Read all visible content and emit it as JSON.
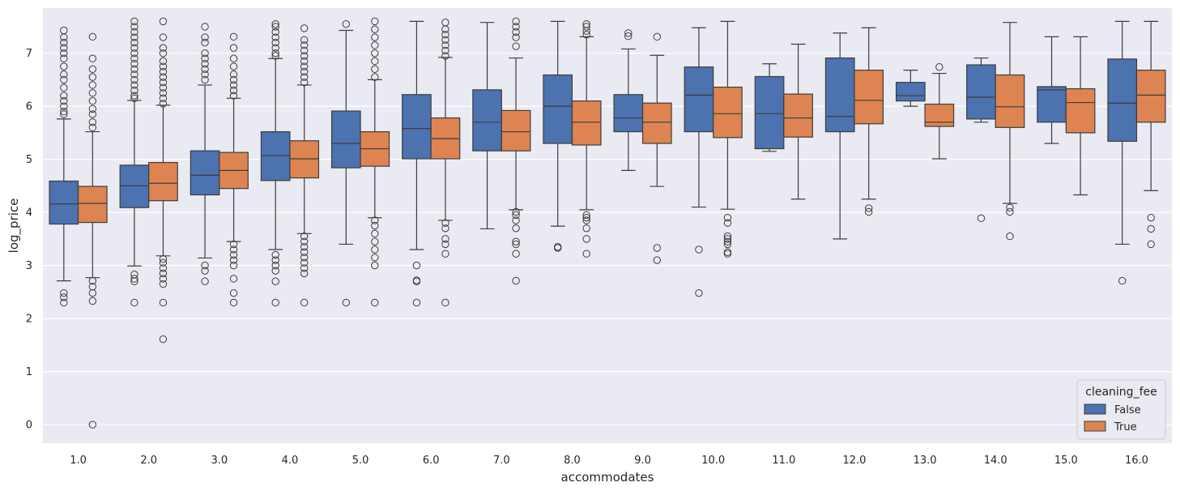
{
  "chart_data": {
    "type": "box",
    "title": "",
    "xlabel": "accommodates",
    "ylabel": "log_price",
    "ylim": [
      -0.35,
      7.85
    ],
    "yticks": [
      0,
      1,
      2,
      3,
      4,
      5,
      6,
      7
    ],
    "categories": [
      "1.0",
      "2.0",
      "3.0",
      "4.0",
      "5.0",
      "6.0",
      "7.0",
      "8.0",
      "9.0",
      "10.0",
      "11.0",
      "12.0",
      "13.0",
      "14.0",
      "15.0",
      "16.0"
    ],
    "grid": true,
    "legend": {
      "title": "cleaning_fee",
      "position": "lower-right"
    },
    "series": [
      {
        "name": "False",
        "color": "#4c72b0",
        "boxes": [
          {
            "whislo": 2.71,
            "q1": 3.78,
            "med": 4.16,
            "q3": 4.59,
            "whishi": 5.76,
            "fliers": [
              2.3,
              2.4,
              2.48,
              5.85,
              5.9,
              6.0,
              6.1,
              6.2,
              6.35,
              6.5,
              6.6,
              6.75,
              6.9,
              7.0,
              7.1,
              7.2,
              7.3,
              7.43
            ]
          },
          {
            "whislo": 2.99,
            "q1": 4.09,
            "med": 4.5,
            "q3": 4.89,
            "whishi": 6.11,
            "fliers": [
              2.3,
              2.7,
              2.75,
              2.83,
              6.15,
              6.2,
              6.3,
              6.4,
              6.5,
              6.6,
              6.7,
              6.8,
              6.9,
              7.0,
              7.1,
              7.2,
              7.3,
              7.4,
              7.5,
              7.6
            ]
          },
          {
            "whislo": 3.14,
            "q1": 4.33,
            "med": 4.7,
            "q3": 5.16,
            "whishi": 6.4,
            "fliers": [
              2.7,
              2.9,
              3.0,
              6.5,
              6.6,
              6.7,
              6.8,
              6.9,
              7.0,
              7.2,
              7.3,
              7.5
            ]
          },
          {
            "whislo": 3.3,
            "q1": 4.6,
            "med": 5.07,
            "q3": 5.52,
            "whishi": 6.9,
            "fliers": [
              2.3,
              2.7,
              2.9,
              3.0,
              3.1,
              3.2,
              6.95,
              7.0,
              7.1,
              7.2,
              7.3,
              7.4,
              7.5,
              7.55
            ]
          },
          {
            "whislo": 3.4,
            "q1": 4.84,
            "med": 5.3,
            "q3": 5.91,
            "whishi": 7.43,
            "fliers": [
              2.3,
              7.55
            ]
          },
          {
            "whislo": 3.3,
            "q1": 5.01,
            "med": 5.58,
            "q3": 6.22,
            "whishi": 7.6,
            "fliers": [
              2.3,
              2.7,
              2.72,
              3.0
            ]
          },
          {
            "whislo": 3.69,
            "q1": 5.16,
            "med": 5.7,
            "q3": 6.31,
            "whishi": 7.58,
            "fliers": []
          },
          {
            "whislo": 3.74,
            "q1": 5.3,
            "med": 6.0,
            "q3": 6.59,
            "whishi": 7.6,
            "fliers": [
              3.33,
              3.35
            ]
          },
          {
            "whislo": 4.79,
            "q1": 5.52,
            "med": 5.78,
            "q3": 6.22,
            "whishi": 7.08,
            "fliers": [
              7.32,
              7.38
            ]
          },
          {
            "whislo": 4.1,
            "q1": 5.52,
            "med": 6.21,
            "q3": 6.74,
            "whishi": 7.48,
            "fliers": [
              2.48,
              3.3
            ]
          },
          {
            "whislo": 5.15,
            "q1": 5.2,
            "med": 5.86,
            "q3": 6.56,
            "whishi": 6.8,
            "fliers": []
          },
          {
            "whislo": 3.5,
            "q1": 5.52,
            "med": 5.81,
            "q3": 6.91,
            "whishi": 7.38,
            "fliers": []
          },
          {
            "whislo": 6.0,
            "q1": 6.1,
            "med": 6.2,
            "q3": 6.45,
            "whishi": 6.68,
            "fliers": []
          },
          {
            "whislo": 5.7,
            "q1": 5.76,
            "med": 6.17,
            "q3": 6.78,
            "whishi": 6.91,
            "fliers": [
              3.89
            ]
          },
          {
            "whislo": 5.3,
            "q1": 5.7,
            "med": 6.31,
            "q3": 6.37,
            "whishi": 7.31,
            "fliers": []
          },
          {
            "whislo": 3.4,
            "q1": 5.34,
            "med": 6.06,
            "q3": 6.89,
            "whishi": 7.6,
            "fliers": [
              2.71
            ]
          }
        ]
      },
      {
        "name": "True",
        "color": "#dd8452",
        "boxes": [
          {
            "whislo": 2.77,
            "q1": 3.81,
            "med": 4.17,
            "q3": 4.49,
            "whishi": 5.52,
            "fliers": [
              0.0,
              2.33,
              2.48,
              2.6,
              2.71,
              5.6,
              5.7,
              5.85,
              5.95,
              6.1,
              6.25,
              6.4,
              6.55,
              6.7,
              6.9,
              7.31
            ]
          },
          {
            "whislo": 3.18,
            "q1": 4.22,
            "med": 4.55,
            "q3": 4.94,
            "whishi": 6.02,
            "fliers": [
              1.61,
              2.3,
              2.65,
              2.75,
              2.85,
              2.95,
              3.05,
              3.12,
              6.05,
              6.15,
              6.25,
              6.35,
              6.45,
              6.55,
              6.65,
              6.75,
              6.85,
              7.0,
              7.1,
              7.3,
              7.6
            ]
          },
          {
            "whislo": 3.45,
            "q1": 4.45,
            "med": 4.79,
            "q3": 5.13,
            "whishi": 6.15,
            "fliers": [
              2.3,
              2.48,
              2.75,
              3.0,
              3.1,
              3.2,
              3.3,
              3.4,
              6.2,
              6.3,
              6.4,
              6.5,
              6.6,
              6.75,
              6.9,
              7.1,
              7.31
            ]
          },
          {
            "whislo": 3.6,
            "q1": 4.65,
            "med": 5.01,
            "q3": 5.35,
            "whishi": 6.4,
            "fliers": [
              2.3,
              2.85,
              2.95,
              3.05,
              3.15,
              3.25,
              3.35,
              3.45,
              3.55,
              6.45,
              6.55,
              6.65,
              6.75,
              6.85,
              6.95,
              7.05,
              7.15,
              7.25,
              7.47
            ]
          },
          {
            "whislo": 3.9,
            "q1": 4.87,
            "med": 5.2,
            "q3": 5.52,
            "whishi": 6.5,
            "fliers": [
              2.3,
              3.0,
              3.15,
              3.3,
              3.45,
              3.6,
              3.75,
              3.85,
              6.55,
              6.7,
              6.85,
              7.0,
              7.15,
              7.3,
              7.45,
              7.6
            ]
          },
          {
            "whislo": 3.85,
            "q1": 5.01,
            "med": 5.39,
            "q3": 5.78,
            "whishi": 6.92,
            "fliers": [
              2.3,
              3.22,
              3.4,
              3.5,
              3.7,
              3.8,
              6.95,
              7.05,
              7.15,
              7.25,
              7.35,
              7.45,
              7.58
            ]
          },
          {
            "whislo": 4.05,
            "q1": 5.16,
            "med": 5.52,
            "q3": 5.92,
            "whishi": 6.91,
            "fliers": [
              2.71,
              3.22,
              3.4,
              3.45,
              3.7,
              3.85,
              3.95,
              4.01,
              7.13,
              7.3,
              7.4,
              7.5,
              7.6
            ]
          },
          {
            "whislo": 4.05,
            "q1": 5.27,
            "med": 5.7,
            "q3": 6.1,
            "whishi": 7.31,
            "fliers": [
              3.22,
              3.5,
              3.7,
              3.85,
              3.9,
              3.95,
              7.35,
              7.42,
              7.5,
              7.55
            ]
          },
          {
            "whislo": 4.49,
            "q1": 5.3,
            "med": 5.7,
            "q3": 6.06,
            "whishi": 6.96,
            "fliers": [
              3.1,
              3.33,
              7.31
            ]
          },
          {
            "whislo": 4.06,
            "q1": 5.41,
            "med": 5.86,
            "q3": 6.36,
            "whishi": 7.6,
            "fliers": [
              3.22,
              3.25,
              3.4,
              3.45,
              3.5,
              3.55,
              3.8,
              3.9
            ]
          },
          {
            "whislo": 4.25,
            "q1": 5.42,
            "med": 5.78,
            "q3": 6.23,
            "whishi": 7.17,
            "fliers": []
          },
          {
            "whislo": 4.25,
            "q1": 5.67,
            "med": 6.11,
            "q3": 6.68,
            "whishi": 7.48,
            "fliers": [
              4.01,
              4.08
            ]
          },
          {
            "whislo": 5.01,
            "q1": 5.62,
            "med": 5.7,
            "q3": 6.04,
            "whishi": 6.62,
            "fliers": [
              6.74
            ]
          },
          {
            "whislo": 4.17,
            "q1": 5.6,
            "med": 5.99,
            "q3": 6.59,
            "whishi": 7.58,
            "fliers": [
              3.55,
              4.01,
              4.09
            ]
          },
          {
            "whislo": 4.33,
            "q1": 5.5,
            "med": 6.07,
            "q3": 6.33,
            "whishi": 7.31,
            "fliers": []
          },
          {
            "whislo": 4.41,
            "q1": 5.7,
            "med": 6.21,
            "q3": 6.68,
            "whishi": 7.6,
            "fliers": [
              3.4,
              3.69,
              3.9
            ]
          }
        ]
      }
    ]
  },
  "colors": {
    "background": "#eaeaf2",
    "grid": "#ffffff",
    "line": "#3d3d3d",
    "text": "#262626"
  }
}
